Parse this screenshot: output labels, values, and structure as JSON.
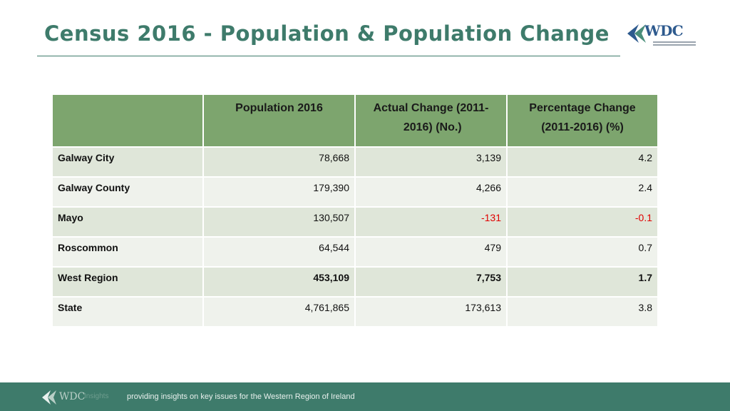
{
  "header": {
    "title": "Census 2016 - Population & Population Change",
    "logo_text": "WDC"
  },
  "table": {
    "columns": [
      "",
      "Population 2016",
      "Actual Change (2011- 2016) (No.)",
      "Percentage Change (2011-2016) (%)"
    ],
    "rows": [
      {
        "area": "Galway City",
        "population": "78,668",
        "change": "3,139",
        "percent": "4.2",
        "negative": false,
        "bold": false
      },
      {
        "area": "Galway County",
        "population": "179,390",
        "change": "4,266",
        "percent": "2.4",
        "negative": false,
        "bold": false
      },
      {
        "area": "Mayo",
        "population": "130,507",
        "change": "-131",
        "percent": "-0.1",
        "negative": true,
        "bold": false
      },
      {
        "area": "Roscommon",
        "population": "64,544",
        "change": "479",
        "percent": "0.7",
        "negative": false,
        "bold": false
      },
      {
        "area": "West Region",
        "population": "453,109",
        "change": "7,753",
        "percent": "1.7",
        "negative": false,
        "bold": true
      },
      {
        "area": "State",
        "population": "4,761,865",
        "change": "173,613",
        "percent": "3.8",
        "negative": false,
        "bold": false
      }
    ]
  },
  "footer": {
    "logo_text": "WDC",
    "faint_text": "Insights",
    "tagline": "providing insights on key issues for the Western Region of Ireland"
  },
  "colors": {
    "title": "#3e7b6b",
    "header_fill": "#7da56e",
    "row_dark": "#dfe6d9",
    "row_light": "#eff2ec",
    "negative": "#e00000",
    "footer": "#3e7b6b"
  }
}
